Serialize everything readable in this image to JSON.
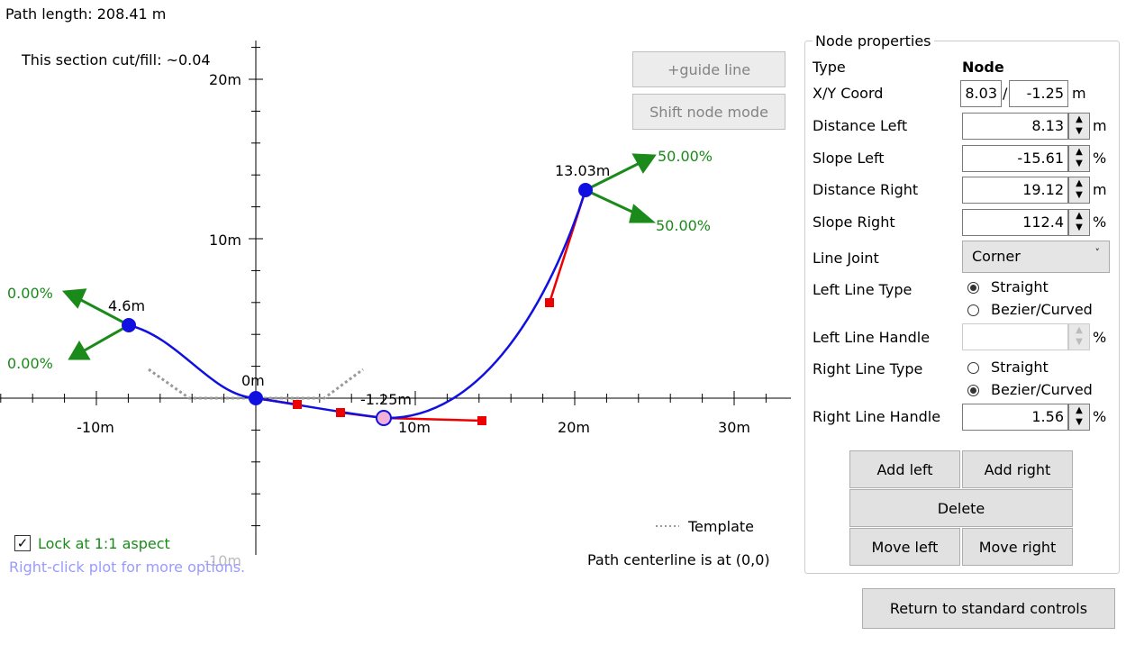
{
  "header": {
    "path_length": "Path length: 208.41 m"
  },
  "plot": {
    "cut_fill": "This section cut/fill: ~0.04",
    "x_axis_labels": [
      "-10m",
      "10m",
      "20m",
      "30m"
    ],
    "y_axis_labels": [
      "20m",
      "10m",
      "-10m"
    ],
    "node_labels": [
      "4.6m",
      "0m",
      "-1.25m",
      "13.03m"
    ],
    "slope_labels": [
      "0.00%",
      "0.00%",
      "50.00%",
      "50.00%"
    ],
    "buttons": [
      "+guide line",
      "Shift node mode"
    ],
    "legend": "Template",
    "lock_checkbox": "Lock at 1:1 aspect",
    "hint": "Right-click plot for more options.",
    "centerline_note": "Path centerline is at (0,0)"
  },
  "node_properties": {
    "title": "Node properties",
    "type": {
      "label": "Type",
      "value": "Node"
    },
    "coord": {
      "label": "X/Y Coord",
      "x": "8.03",
      "separator": "/",
      "y": "-1.25",
      "unit": "m"
    },
    "fields": [
      {
        "label": "Distance Left",
        "value": "8.13",
        "unit": "m"
      },
      {
        "label": "Slope Left",
        "value": "-15.61",
        "unit": "%"
      },
      {
        "label": "Distance Right",
        "value": "19.12",
        "unit": "m"
      },
      {
        "label": "Slope Right",
        "value": "112.4",
        "unit": "%"
      }
    ],
    "line_joint": {
      "label": "Line Joint",
      "value": "Corner"
    },
    "left_line_type": {
      "label": "Left Line Type",
      "options": [
        "Straight",
        "Bezier/Curved"
      ]
    },
    "left_line_handle": {
      "label": "Left Line Handle",
      "unit": "%"
    },
    "right_line_type": {
      "label": "Right Line Type",
      "options": [
        "Straight",
        "Bezier/Curved"
      ]
    },
    "right_line_handle": {
      "label": "Right Line Handle",
      "value": "1.56",
      "unit": "%"
    },
    "buttons": [
      "Add left",
      "Add right",
      "Delete",
      "Move left",
      "Move right"
    ]
  },
  "footer_button": "Return to standard controls"
}
